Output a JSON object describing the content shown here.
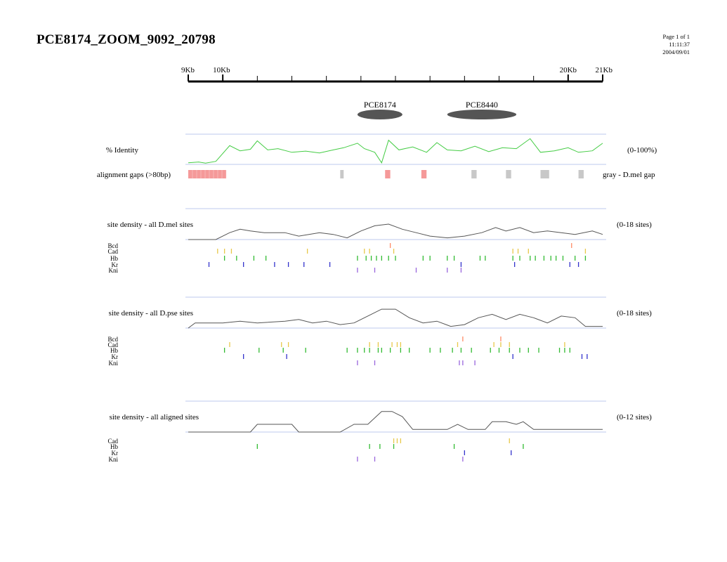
{
  "header": {
    "title": "PCE8174_ZOOM_9092_20798",
    "page": "Page 1 of 1",
    "time": "11:11:37",
    "date": "2004/09/01"
  },
  "ruler": {
    "range_kb": [
      9,
      21
    ],
    "labels": [
      "9Kb",
      "10Kb",
      "20Kb",
      "21Kb"
    ],
    "ticks_kb": [
      9,
      10,
      11,
      12,
      13,
      14,
      15,
      16,
      17,
      18,
      19,
      20,
      21
    ]
  },
  "features": [
    {
      "name": "PCE8174",
      "start_kb": 13.9,
      "end_kb": 15.2,
      "color": "#555555"
    },
    {
      "name": "PCE8440",
      "start_kb": 16.5,
      "end_kb": 18.5,
      "color": "#555555"
    }
  ],
  "identity_track": {
    "label": "% Identity",
    "range_label": "(0-100%)",
    "color": "#44cc44",
    "points": [
      [
        9.0,
        5
      ],
      [
        9.3,
        8
      ],
      [
        9.5,
        4
      ],
      [
        9.8,
        10
      ],
      [
        10.2,
        62
      ],
      [
        10.5,
        45
      ],
      [
        10.8,
        50
      ],
      [
        11.0,
        78
      ],
      [
        11.3,
        48
      ],
      [
        11.6,
        52
      ],
      [
        12.0,
        40
      ],
      [
        12.4,
        44
      ],
      [
        12.8,
        38
      ],
      [
        13.2,
        48
      ],
      [
        13.5,
        55
      ],
      [
        13.9,
        70
      ],
      [
        14.1,
        52
      ],
      [
        14.4,
        40
      ],
      [
        14.6,
        5
      ],
      [
        14.8,
        80
      ],
      [
        15.1,
        48
      ],
      [
        15.5,
        58
      ],
      [
        15.9,
        40
      ],
      [
        16.2,
        72
      ],
      [
        16.5,
        48
      ],
      [
        16.9,
        45
      ],
      [
        17.3,
        60
      ],
      [
        17.7,
        42
      ],
      [
        18.1,
        55
      ],
      [
        18.5,
        52
      ],
      [
        18.9,
        85
      ],
      [
        19.2,
        40
      ],
      [
        19.6,
        45
      ],
      [
        20.0,
        55
      ],
      [
        20.3,
        40
      ],
      [
        20.7,
        45
      ],
      [
        21.0,
        70
      ]
    ]
  },
  "gaps_track": {
    "label": "alignment gaps (>80bp)",
    "legend": "gray - D.mel gap",
    "pink_color": "#f59999",
    "gray_color": "#c8c8c8",
    "gaps": [
      {
        "start_kb": 9.0,
        "end_kb": 10.1,
        "type": "pink"
      },
      {
        "start_kb": 13.4,
        "end_kb": 13.5,
        "type": "gray"
      },
      {
        "start_kb": 14.7,
        "end_kb": 14.85,
        "type": "pink"
      },
      {
        "start_kb": 15.75,
        "end_kb": 15.9,
        "type": "pink"
      },
      {
        "start_kb": 17.2,
        "end_kb": 17.35,
        "type": "gray"
      },
      {
        "start_kb": 18.2,
        "end_kb": 18.35,
        "type": "gray"
      },
      {
        "start_kb": 19.2,
        "end_kb": 19.45,
        "type": "gray"
      },
      {
        "start_kb": 20.3,
        "end_kb": 20.45,
        "type": "gray"
      }
    ]
  },
  "tf_colors": {
    "Bcd": "#ff8a65",
    "Cad": "#e8c84a",
    "Hb": "#33bb33",
    "Kr": "#3333cc",
    "Kni": "#9966dd"
  },
  "sections": [
    {
      "label": "site density - all D.mel sites",
      "range_label": "(0-18 sites)",
      "max": 18,
      "density": [
        [
          9.0,
          0
        ],
        [
          9.8,
          0
        ],
        [
          10.2,
          4
        ],
        [
          10.5,
          6
        ],
        [
          10.8,
          5
        ],
        [
          11.2,
          4
        ],
        [
          11.8,
          4
        ],
        [
          12.2,
          2
        ],
        [
          12.8,
          4
        ],
        [
          13.2,
          3
        ],
        [
          13.6,
          1
        ],
        [
          14.0,
          5
        ],
        [
          14.4,
          8
        ],
        [
          14.8,
          9
        ],
        [
          15.2,
          6
        ],
        [
          15.6,
          4
        ],
        [
          16.0,
          2
        ],
        [
          16.5,
          1
        ],
        [
          17.0,
          2
        ],
        [
          17.5,
          4
        ],
        [
          17.9,
          7
        ],
        [
          18.2,
          5
        ],
        [
          18.6,
          7
        ],
        [
          19.0,
          4
        ],
        [
          19.4,
          5
        ],
        [
          19.8,
          4
        ],
        [
          20.2,
          3
        ],
        [
          20.7,
          5
        ],
        [
          21.0,
          3
        ]
      ],
      "tracks": [
        {
          "name": "Bcd",
          "sites": [
            14.85,
            20.1
          ]
        },
        {
          "name": "Cad",
          "sites": [
            9.85,
            10.05,
            10.25,
            12.45,
            14.1,
            14.25,
            14.95,
            18.4,
            18.55,
            18.85,
            20.5
          ]
        },
        {
          "name": "Hb",
          "sites": [
            10.05,
            10.4,
            10.9,
            11.25,
            13.9,
            14.15,
            14.3,
            14.45,
            14.6,
            14.8,
            15.0,
            15.8,
            16.0,
            16.5,
            16.7,
            17.45,
            17.6,
            18.4,
            18.6,
            18.9,
            19.05,
            19.3,
            19.5,
            19.65,
            19.85,
            20.2,
            20.5
          ]
        },
        {
          "name": "Kr",
          "sites": [
            9.6,
            10.6,
            11.5,
            11.9,
            12.35,
            13.1,
            16.9,
            18.45,
            20.05,
            20.3
          ]
        },
        {
          "name": "Kni",
          "sites": [
            13.9,
            14.4,
            15.6,
            16.5,
            16.9
          ]
        }
      ]
    },
    {
      "label": "site density - all D.pse sites",
      "range_label": "(0-18 sites)",
      "max": 18,
      "density": [
        [
          9.0,
          0
        ],
        [
          9.2,
          3
        ],
        [
          10.0,
          3
        ],
        [
          10.5,
          4
        ],
        [
          11.0,
          3
        ],
        [
          11.8,
          4
        ],
        [
          12.2,
          5
        ],
        [
          12.6,
          3
        ],
        [
          13.0,
          4
        ],
        [
          13.4,
          2
        ],
        [
          13.8,
          3
        ],
        [
          14.3,
          8
        ],
        [
          14.6,
          11
        ],
        [
          15.0,
          11
        ],
        [
          15.4,
          6
        ],
        [
          15.8,
          3
        ],
        [
          16.2,
          4
        ],
        [
          16.6,
          1
        ],
        [
          17.0,
          2
        ],
        [
          17.4,
          6
        ],
        [
          17.8,
          8
        ],
        [
          18.2,
          5
        ],
        [
          18.6,
          8
        ],
        [
          19.0,
          6
        ],
        [
          19.4,
          3
        ],
        [
          19.8,
          7
        ],
        [
          20.2,
          6
        ],
        [
          20.5,
          1
        ],
        [
          21.0,
          1
        ]
      ],
      "tracks": [
        {
          "name": "Bcd",
          "sites": [
            16.95,
            18.05
          ]
        },
        {
          "name": "Cad",
          "sites": [
            10.2,
            11.7,
            11.9,
            14.25,
            14.5,
            14.9,
            15.05,
            15.15,
            16.8,
            17.85,
            18.05,
            18.3,
            19.9
          ]
        },
        {
          "name": "Hb",
          "sites": [
            10.05,
            11.05,
            11.75,
            12.4,
            13.6,
            13.9,
            14.1,
            14.25,
            14.5,
            14.6,
            14.85,
            15.15,
            15.4,
            16.0,
            16.3,
            16.65,
            16.9,
            17.2,
            17.75,
            18.0,
            18.3,
            18.6,
            18.85,
            19.15,
            19.75,
            19.9,
            20.05
          ]
        },
        {
          "name": "Kr",
          "sites": [
            10.6,
            11.85,
            18.4,
            20.4,
            20.55
          ]
        },
        {
          "name": "Kni",
          "sites": [
            13.9,
            14.4,
            16.85,
            16.95,
            17.3
          ]
        }
      ]
    },
    {
      "label": "site density - all aligned sites",
      "range_label": "(0-12 sites)",
      "max": 12,
      "density": [
        [
          9.0,
          0
        ],
        [
          10.8,
          0
        ],
        [
          11.0,
          3
        ],
        [
          11.5,
          3
        ],
        [
          12.0,
          3
        ],
        [
          12.2,
          0
        ],
        [
          13.4,
          0
        ],
        [
          13.8,
          3
        ],
        [
          14.2,
          3
        ],
        [
          14.6,
          8
        ],
        [
          14.9,
          8
        ],
        [
          15.2,
          6
        ],
        [
          15.5,
          1
        ],
        [
          16.5,
          1
        ],
        [
          16.8,
          3
        ],
        [
          17.1,
          1
        ],
        [
          17.6,
          1
        ],
        [
          17.8,
          4
        ],
        [
          18.2,
          4
        ],
        [
          18.5,
          3
        ],
        [
          18.7,
          4
        ],
        [
          19.0,
          1
        ],
        [
          19.4,
          1
        ],
        [
          20.5,
          1
        ],
        [
          21.0,
          1
        ]
      ],
      "tracks": [
        {
          "name": "Cad",
          "sites": [
            14.95,
            15.05,
            15.15,
            18.3
          ]
        },
        {
          "name": "Hb",
          "sites": [
            11.0,
            14.25,
            14.55,
            14.95,
            16.7,
            18.7
          ]
        },
        {
          "name": "Kr",
          "sites": [
            17.0,
            18.35
          ]
        },
        {
          "name": "Kni",
          "sites": [
            13.9,
            14.4,
            16.95
          ]
        }
      ]
    }
  ]
}
